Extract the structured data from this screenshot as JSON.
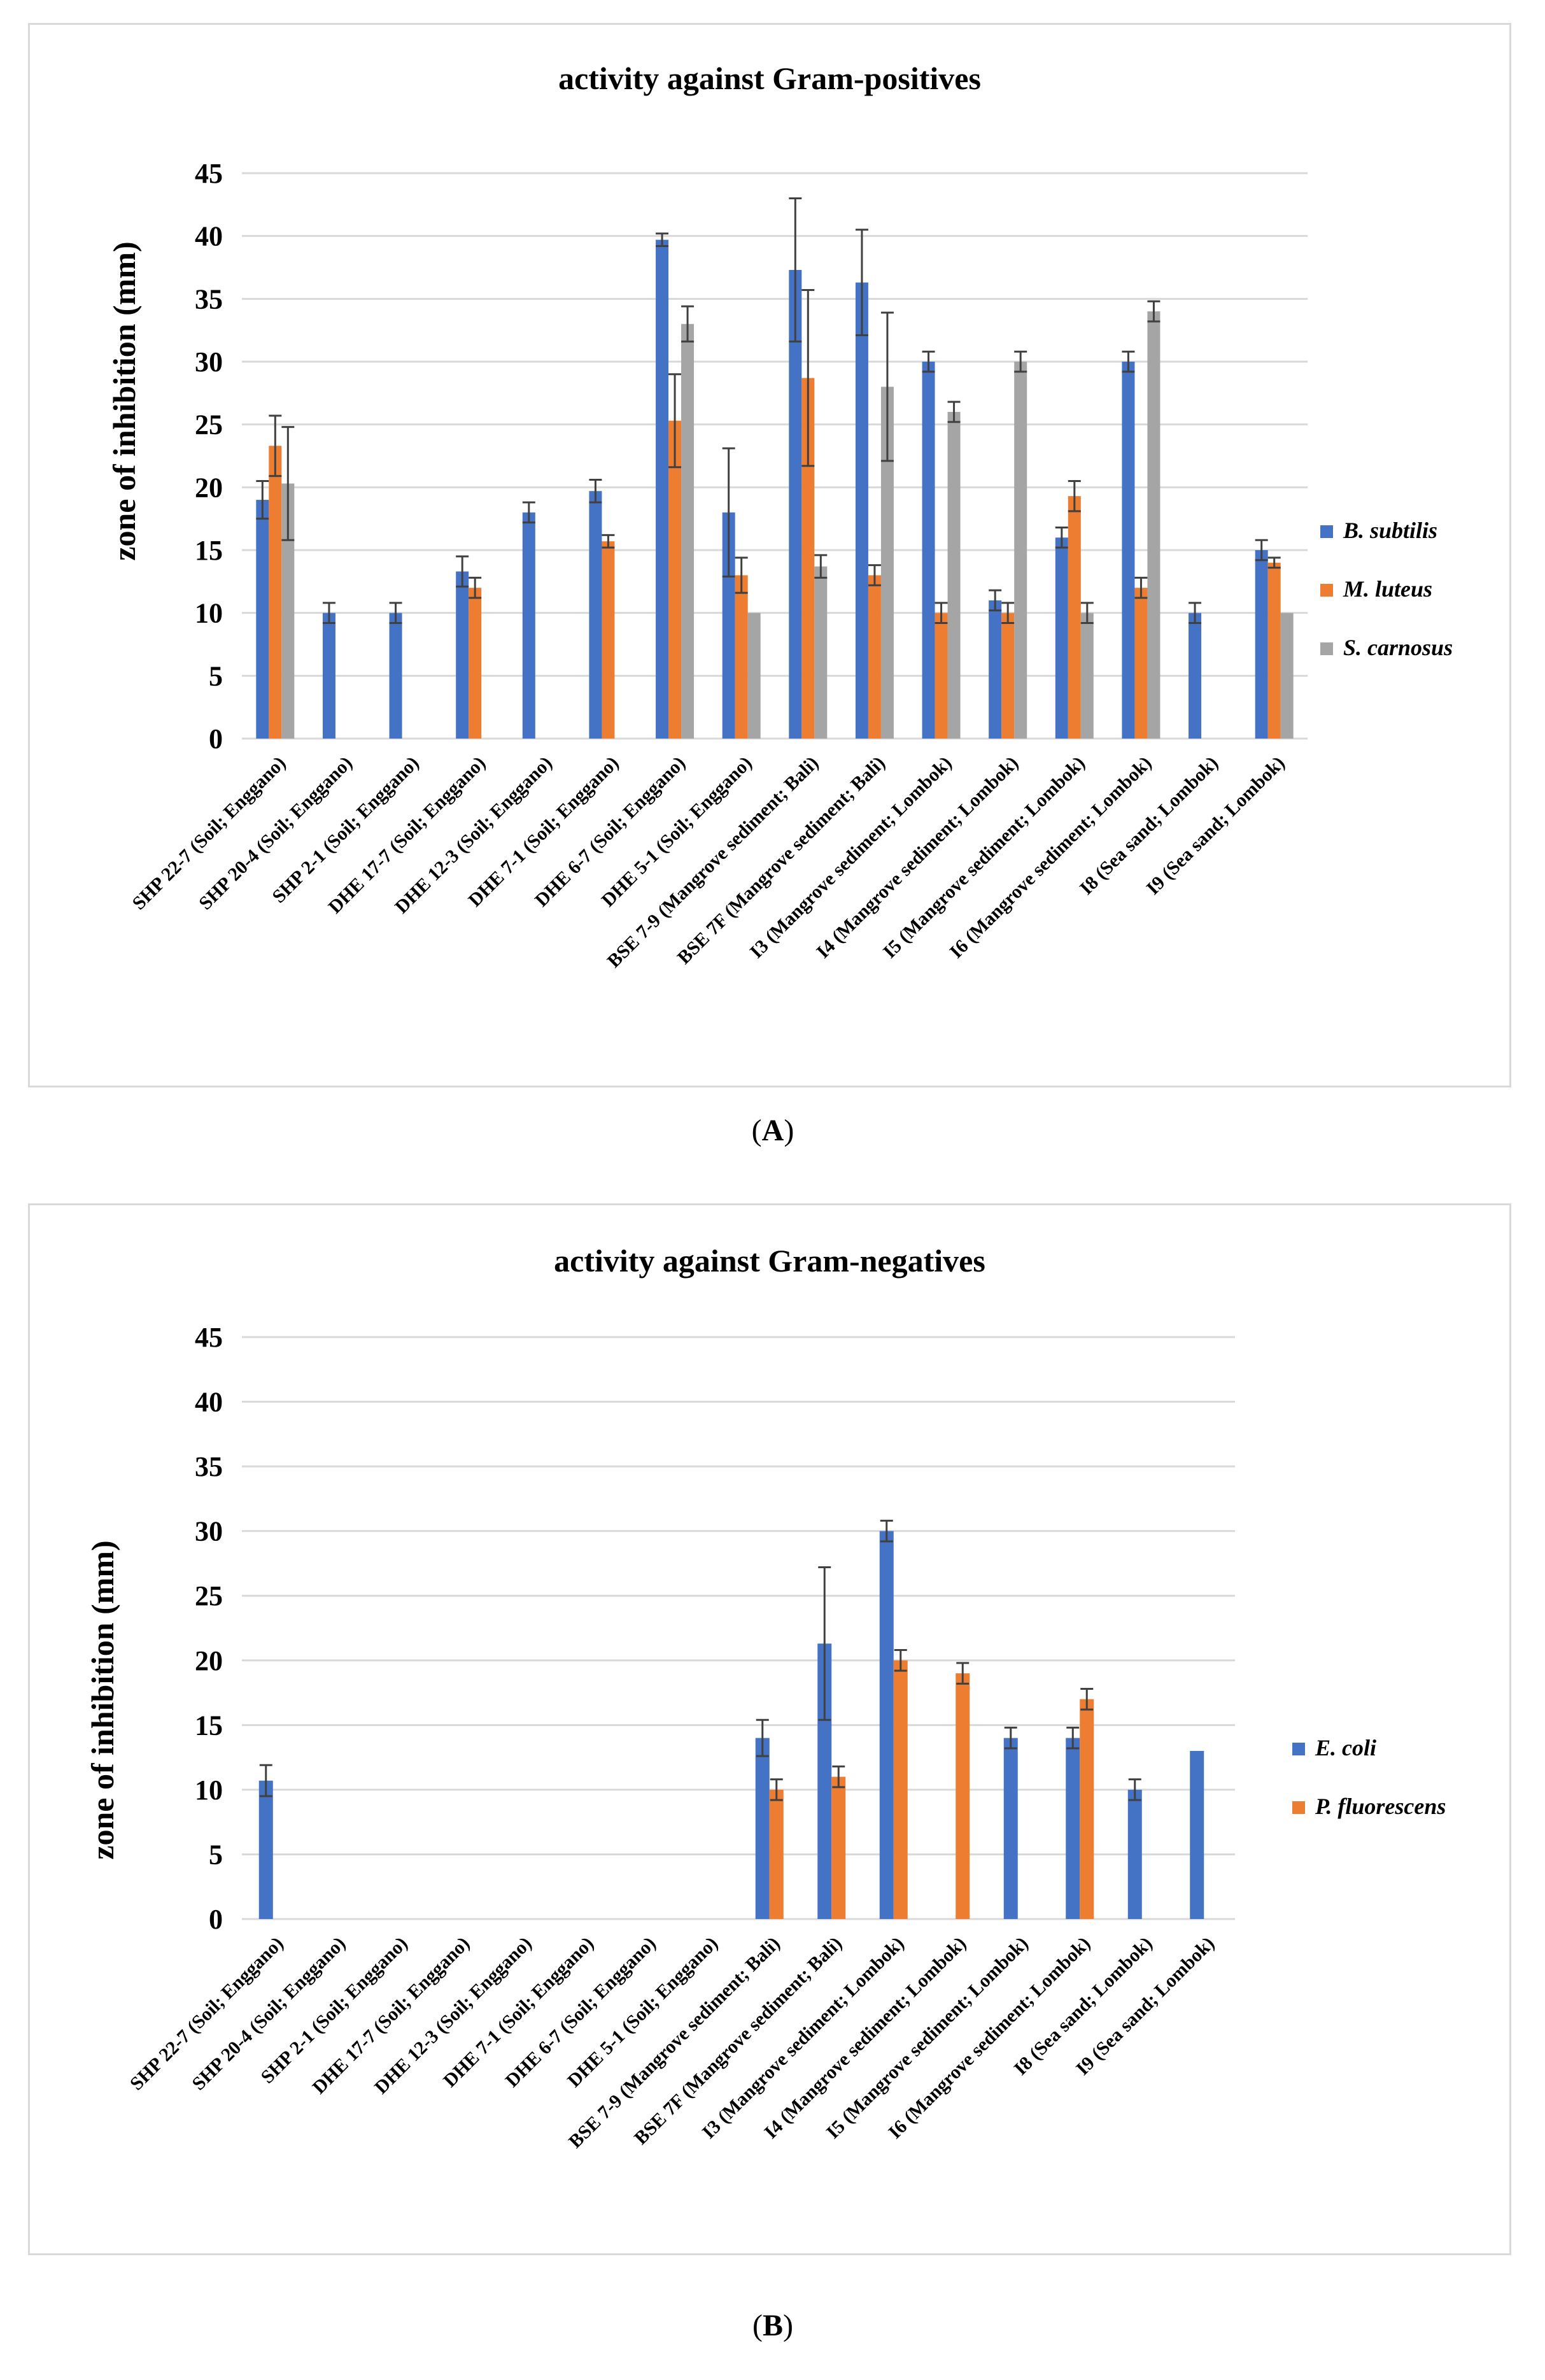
{
  "colors": {
    "B. subtilis": "#4472c4",
    "M. luteus": "#ed7d31",
    "S. carnosus": "#a5a5a5",
    "E. coli": "#4472c4",
    "P. fluorescens": "#ed7d31",
    "grid": "#d9d9d9",
    "error_bar": "#404040"
  },
  "panel_labels": {
    "A": {
      "open": "(",
      "letter": "A",
      "close": ")"
    },
    "B": {
      "open": "(",
      "letter": "B",
      "close": ")"
    }
  },
  "chart_data": [
    {
      "type": "bar",
      "title": "activity against Gram-positives",
      "xlabel": "",
      "ylabel": "zone of inhibition (mm)",
      "ylim": [
        0,
        45
      ],
      "yticks": [
        0,
        5,
        10,
        15,
        20,
        25,
        30,
        35,
        40,
        45
      ],
      "grid": true,
      "legend_position": "right",
      "categories": [
        "SHP 22-7 (Soil; Enggano)",
        "SHP 20-4 (Soil; Enggano)",
        "SHP 2-1 (Soil; Enggano)",
        "DHE 17-7 (Soil; Enggano)",
        "DHE 12-3 (Soil; Enggano)",
        "DHE 7-1 (Soil; Enggano)",
        "DHE 6-7 (Soil; Enggano)",
        "DHE 5-1 (Soil; Enggano)",
        "BSE 7-9 (Mangrove sediment; Bali)",
        "BSE 7F (Mangrove sediment; Bali)",
        "I3  (Mangrove sediment; Lombok)",
        "I4  (Mangrove sediment; Lombok)",
        "I5  (Mangrove sediment; Lombok)",
        "I6  (Mangrove sediment; Lombok)",
        "I8  (Sea sand; Lombok)",
        "I9  (Sea sand; Lombok)"
      ],
      "series": [
        {
          "name": "B. subtilis",
          "values": [
            19,
            10,
            10,
            13.3,
            18,
            19.7,
            39.7,
            18,
            37.3,
            36.3,
            30,
            11,
            16,
            30,
            10,
            15
          ],
          "errors": [
            1.5,
            0.8,
            0.8,
            1.2,
            0.8,
            0.9,
            0.5,
            5.1,
            5.7,
            4.2,
            0.8,
            0.8,
            0.8,
            0.8,
            0.8,
            0.8
          ]
        },
        {
          "name": "M. luteus",
          "values": [
            23.3,
            0,
            0,
            12,
            0,
            15.7,
            25.3,
            13,
            28.7,
            13,
            10,
            10,
            19.3,
            12,
            0,
            14
          ],
          "errors": [
            2.4,
            0,
            0,
            0.8,
            0,
            0.5,
            3.7,
            1.4,
            7.0,
            0.8,
            0.8,
            0.8,
            1.2,
            0.8,
            0,
            0.4
          ]
        },
        {
          "name": "S. carnosus",
          "values": [
            20.3,
            0,
            0,
            0,
            0,
            0,
            33,
            10,
            13.7,
            28,
            26,
            30,
            10,
            34,
            0,
            10
          ],
          "errors": [
            4.5,
            0,
            0,
            0,
            0,
            0,
            1.4,
            0,
            0.9,
            5.9,
            0.8,
            0.8,
            0.8,
            0.8,
            0,
            0
          ]
        }
      ]
    },
    {
      "type": "bar",
      "title": "activity against Gram-negatives",
      "xlabel": "",
      "ylabel": "zone of inhibition (mm)",
      "ylim": [
        0,
        45
      ],
      "yticks": [
        0,
        5,
        10,
        15,
        20,
        25,
        30,
        35,
        40,
        45
      ],
      "grid": true,
      "legend_position": "right",
      "categories": [
        "SHP 22-7 (Soil; Enggano)",
        "SHP 20-4 (Soil; Enggano)",
        "SHP 2-1 (Soil; Enggano)",
        "DHE 17-7 (Soil; Enggano)",
        "DHE 12-3 (Soil; Enggano)",
        "DHE 7-1 (Soil; Enggano)",
        "DHE 6-7 (Soil; Enggano)",
        "DHE 5-1 (Soil; Enggano)",
        "BSE 7-9 (Mangrove sediment; Bali)",
        "BSE 7F (Mangrove sediment; Bali)",
        "I3 (Mangrove sediment; Lombok)",
        "I4 (Mangrove sediment; Lombok)",
        "I5 (Mangrove sediment; Lombok)",
        "I6 (Mangrove sediment; Lombok)",
        "I8 (Sea sand; Lombok)",
        "I9 (Sea sand; Lombok)"
      ],
      "series": [
        {
          "name": "E. coli",
          "values": [
            10.7,
            0,
            0,
            0,
            0,
            0,
            0,
            0,
            14,
            21.3,
            30,
            0,
            14,
            14,
            10,
            13
          ],
          "errors": [
            1.2,
            0,
            0,
            0,
            0,
            0,
            0,
            0,
            1.4,
            5.9,
            0.8,
            0,
            0.8,
            0.8,
            0.8,
            0
          ]
        },
        {
          "name": "P. fluorescens",
          "values": [
            0,
            0,
            0,
            0,
            0,
            0,
            0,
            0,
            10,
            11,
            20,
            19,
            0,
            17,
            0,
            0
          ],
          "errors": [
            0,
            0,
            0,
            0,
            0,
            0,
            0,
            0,
            0.8,
            0.8,
            0.8,
            0.8,
            0,
            0.8,
            0,
            0
          ]
        }
      ]
    }
  ]
}
